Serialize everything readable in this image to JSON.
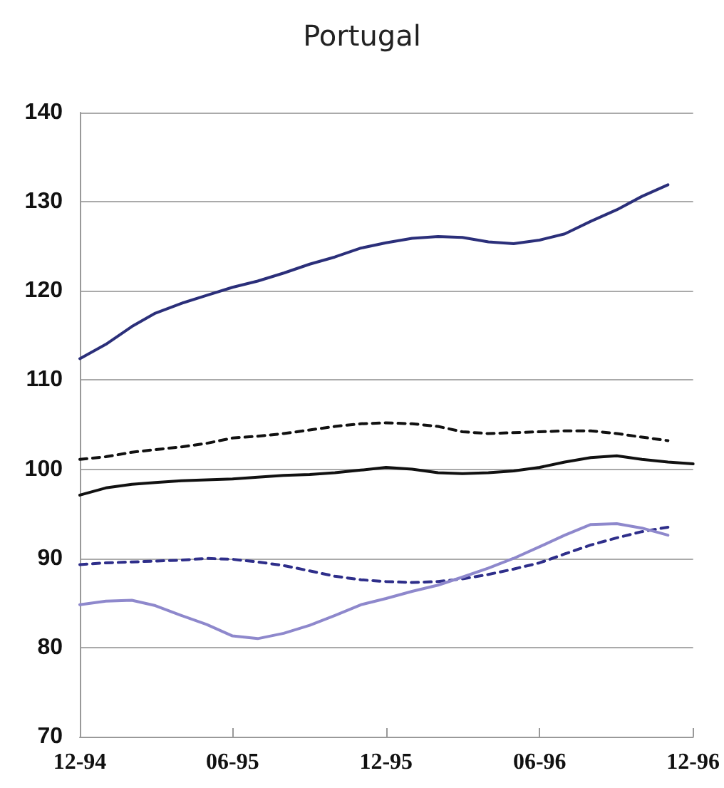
{
  "chart_data": {
    "type": "line",
    "title": "Portugal",
    "x": [
      "1994-12",
      "1995-01",
      "1995-02",
      "1995-03",
      "1995-04",
      "1995-05",
      "1995-06",
      "1995-07",
      "1995-08",
      "1995-09",
      "1995-10",
      "1995-11",
      "1995-12",
      "1996-01",
      "1996-02",
      "1996-03",
      "1996-04",
      "1996-05",
      "1996-06",
      "1996-07",
      "1996-08",
      "1996-09",
      "1996-10",
      "1996-11",
      "1996-12"
    ],
    "series": [
      {
        "color": "#2b2f7a",
        "line_style": "solid",
        "values": [
          112.4,
          114.0,
          116.0,
          117.5,
          118.6,
          119.5,
          120.4,
          121.1,
          122.0,
          123.0,
          123.8,
          124.8,
          125.4,
          125.9,
          126.1,
          126.0,
          125.5,
          125.3,
          125.7,
          126.4,
          127.8,
          129.1,
          130.6,
          131.9,
          null
        ]
      },
      {
        "color": "#111111",
        "line_style": "dashed",
        "values": [
          101.1,
          101.4,
          101.9,
          102.2,
          102.5,
          102.9,
          103.5,
          103.7,
          104.0,
          104.4,
          104.8,
          105.1,
          105.2,
          105.1,
          104.8,
          104.2,
          104.0,
          104.1,
          104.2,
          104.3,
          104.3,
          104.0,
          103.6,
          103.2,
          null
        ]
      },
      {
        "color": "#111111",
        "line_style": "solid",
        "values": [
          97.1,
          97.9,
          98.3,
          98.5,
          98.7,
          98.8,
          98.9,
          99.1,
          99.3,
          99.4,
          99.6,
          99.9,
          100.2,
          100.0,
          99.6,
          99.5,
          99.6,
          99.8,
          100.2,
          100.8,
          101.3,
          101.5,
          101.1,
          100.8,
          100.6
        ]
      },
      {
        "color": "#2e2e8a",
        "line_style": "dashed",
        "values": [
          89.3,
          89.5,
          89.6,
          89.7,
          89.8,
          90.0,
          89.9,
          89.6,
          89.2,
          88.6,
          88.0,
          87.6,
          87.4,
          87.3,
          87.4,
          87.7,
          88.2,
          88.8,
          89.5,
          90.5,
          91.5,
          92.3,
          93.0,
          93.5,
          null
        ]
      },
      {
        "color": "#8e88cc",
        "line_style": "solid",
        "values": [
          84.8,
          85.2,
          85.3,
          84.7,
          83.6,
          82.6,
          81.3,
          81.0,
          81.6,
          82.5,
          83.6,
          84.8,
          85.5,
          86.3,
          87.0,
          87.9,
          88.9,
          90.0,
          91.3,
          92.6,
          93.8,
          93.9,
          93.4,
          92.6,
          null
        ]
      }
    ],
    "xlim": [
      "1994-12",
      "1996-12"
    ],
    "xticks": [
      {
        "value": "1994-12",
        "label": "12-94"
      },
      {
        "value": "1995-06",
        "label": "06-95"
      },
      {
        "value": "1995-12",
        "label": "12-95"
      },
      {
        "value": "1996-06",
        "label": "06-96"
      },
      {
        "value": "1996-12",
        "label": "12-96"
      }
    ],
    "ylim": [
      70,
      140
    ],
    "yticks": [
      70,
      80,
      90,
      100,
      110,
      120,
      130,
      140
    ],
    "grid": "y",
    "marker": "none"
  }
}
